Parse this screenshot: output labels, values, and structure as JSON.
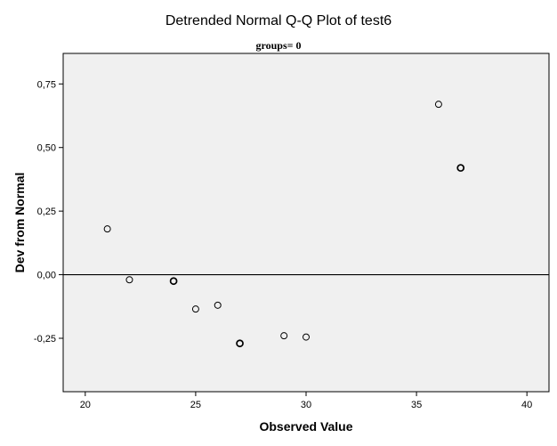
{
  "chart_data": {
    "type": "scatter",
    "title": "Detrended Normal Q-Q Plot of test6",
    "subtitle": "groups= 0",
    "xlabel": "Observed Value",
    "ylabel": "Dev from Normal",
    "xlim": [
      19,
      41
    ],
    "ylim": [
      -0.46,
      0.87
    ],
    "x_ticks": [
      20,
      25,
      30,
      35,
      40
    ],
    "x_tick_labels": [
      "20",
      "25",
      "30",
      "35",
      "40"
    ],
    "y_ticks": [
      0.75,
      0.5,
      0.25,
      0.0,
      -0.25
    ],
    "y_tick_labels": [
      "0,75",
      "0,50",
      "0,25",
      "0,00",
      "-0,25"
    ],
    "reference_line_y": 0.0,
    "grid": false,
    "points": [
      {
        "x": 21,
        "y": 0.18,
        "overlap": 1
      },
      {
        "x": 22,
        "y": -0.02,
        "overlap": 1
      },
      {
        "x": 24,
        "y": -0.025,
        "overlap": 2
      },
      {
        "x": 25,
        "y": -0.135,
        "overlap": 1
      },
      {
        "x": 26,
        "y": -0.12,
        "overlap": 1
      },
      {
        "x": 27,
        "y": -0.27,
        "overlap": 2
      },
      {
        "x": 29,
        "y": -0.24,
        "overlap": 1
      },
      {
        "x": 30,
        "y": -0.245,
        "overlap": 1
      },
      {
        "x": 36,
        "y": 0.67,
        "overlap": 1
      },
      {
        "x": 37,
        "y": 0.42,
        "overlap": 2
      }
    ],
    "colors": {
      "plot_background": "#f0f0f0",
      "marker_stroke": "#000000",
      "axis": "#000000"
    }
  }
}
